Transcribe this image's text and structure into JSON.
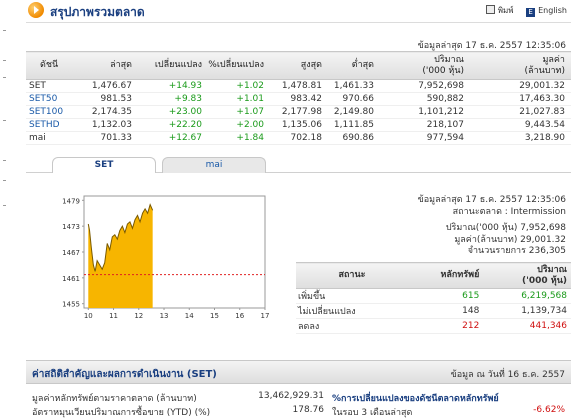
{
  "header": {
    "title": "สรุปภาพรวมตลาด",
    "print_label": "พิมพ์",
    "english_label": "English"
  },
  "updated": "ข้อมูลล่าสุด 17 ธ.ค. 2557 12:35:06",
  "market_table": {
    "headers": [
      "ดัชนี",
      "ล่าสุด",
      "เปลี่ยนแปลง",
      "%เปลี่ยนแปลง",
      "สูงสุด",
      "ต่ำสุด",
      "ปริมาณ\n('000 หุ้น)",
      "มูลค่า\n(ล้านบาท)"
    ],
    "rows": [
      {
        "name": "SET",
        "last": "1,476.67",
        "chg": "+14.93",
        "pct": "+1.02",
        "high": "1,478.81",
        "low": "1,461.33",
        "vol": "7,952,698",
        "val": "29,001.32",
        "link": false
      },
      {
        "name": "SET50",
        "last": "981.53",
        "chg": "+9.83",
        "pct": "+1.01",
        "high": "983.42",
        "low": "970.66",
        "vol": "590,882",
        "val": "17,463.30",
        "link": true
      },
      {
        "name": "SET100",
        "last": "2,174.35",
        "chg": "+23.00",
        "pct": "+1.07",
        "high": "2,177.98",
        "low": "2,149.80",
        "vol": "1,101,212",
        "val": "21,027.83",
        "link": true
      },
      {
        "name": "SETHD",
        "last": "1,132.03",
        "chg": "+22.20",
        "pct": "+2.00",
        "high": "1,135.06",
        "low": "1,111.85",
        "vol": "218,107",
        "val": "9,443.54",
        "link": true
      },
      {
        "name": "mai",
        "last": "701.33",
        "chg": "+12.67",
        "pct": "+1.84",
        "high": "702.18",
        "low": "690.86",
        "vol": "977,594",
        "val": "3,218.90",
        "link": false
      }
    ]
  },
  "tabs": [
    {
      "label": "SET",
      "active": true
    },
    {
      "label": "mai",
      "active": false
    }
  ],
  "chart_data": {
    "type": "area",
    "title": "",
    "xlabel": "",
    "ylabel": "",
    "x_ticks": [
      10,
      11,
      12,
      13,
      14,
      15,
      16,
      17
    ],
    "y_ticks": [
      1455,
      1461,
      1467,
      1473,
      1479
    ],
    "ylim": [
      1454,
      1480
    ],
    "xlim": [
      9.83,
      17
    ],
    "baseline": 1461.74,
    "grid": false,
    "x": [
      10.0,
      10.05,
      10.12,
      10.2,
      10.27,
      10.35,
      10.45,
      10.55,
      10.65,
      10.75,
      10.85,
      10.95,
      11.05,
      11.15,
      11.25,
      11.35,
      11.45,
      11.55,
      11.65,
      11.75,
      11.85,
      11.95,
      12.05,
      12.15,
      12.25,
      12.35,
      12.45,
      12.55
    ],
    "values": [
      1473.5,
      1472.0,
      1468.0,
      1464.0,
      1462.5,
      1465.0,
      1464.0,
      1463.0,
      1464.5,
      1469.0,
      1467.5,
      1470.5,
      1471.0,
      1470.0,
      1472.0,
      1473.0,
      1471.5,
      1473.5,
      1474.0,
      1472.5,
      1474.5,
      1475.5,
      1474.0,
      1476.0,
      1477.0,
      1476.0,
      1478.0,
      1476.67
    ]
  },
  "chart_colors": {
    "fill": "#f7b500",
    "line": "#7a5a00",
    "ref": "#e02020"
  },
  "info": {
    "updated": "ข้อมูลล่าสุด 17 ธ.ค. 2557 12:35:06",
    "status": "สถานะตลาด : Intermission",
    "volume": "ปริมาณ('000 หุ้น) 7,952,698",
    "value": "มูลค่า(ล้านบาท) 29,001.32",
    "trades": "จำนวนรายการ 236,305"
  },
  "status_table": {
    "headers": [
      "สถานะ",
      "หลักทรัพย์",
      "ปริมาณ\n('000 หุ้น)"
    ],
    "rows": [
      {
        "name": "เพิ่มขึ้น",
        "count": "615",
        "vol": "6,219,568",
        "cls": "pos"
      },
      {
        "name": "ไม่เปลี่ยนแปลง",
        "count": "148",
        "vol": "1,139,734",
        "cls": ""
      },
      {
        "name": "ลดลง",
        "count": "212",
        "vol": "441,346",
        "cls": "neg"
      }
    ]
  },
  "kpi": {
    "title": "ค่าสถิติสำคัญและผลการดำเนินงาน (SET)",
    "date": "ข้อมูล ณ วันที่ 16 ธ.ค. 2557",
    "row1_label": "มูลค่าหลักทรัพย์ตามราคาตลาด (ล้านบาท)",
    "row1_value": "13,462,929.31",
    "row1_right": "%การเปลี่ยนแปลงของดัชนีตลาดหลักทรัพย์",
    "row2_label": "อัตราหมุนเวียนปริมาณการซื้อขาย (YTD) (%)",
    "row2_value": "178.76",
    "row2_right": "ในรอบ 3 เดือนล่าสุด",
    "row2_right_value": "-6.62%"
  }
}
